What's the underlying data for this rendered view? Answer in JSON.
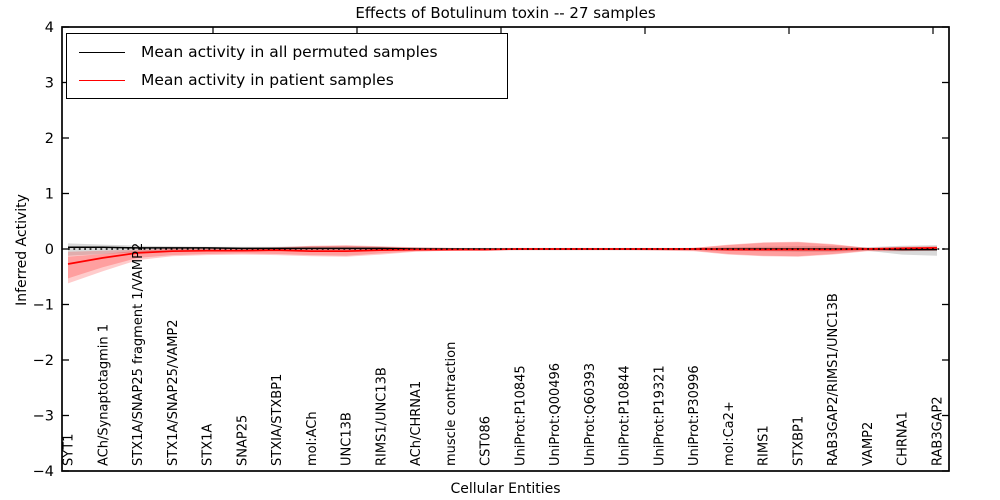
{
  "chart_data": {
    "type": "line",
    "title": "Effects of Botulinum toxin -- 27 samples",
    "xlabel": "Cellular Entities",
    "ylabel": "Inferred Activity",
    "ylim": [
      -4,
      4
    ],
    "yticks": [
      4,
      3,
      2,
      1,
      0,
      -1,
      -2,
      -3,
      -4
    ],
    "grid": false,
    "legend_position": "upper-left",
    "categories": [
      "SYT1",
      "ACh/Synaptotagmin 1",
      "STX1A/SNAP25 fragment 1/VAMP2",
      "STX1A/SNAP25/VAMP2",
      "STX1A",
      "SNAP25",
      "STXIA/STXBP1",
      "mol:ACh",
      "UNC13B",
      "RIMS1/UNC13B",
      "ACh/CHRNA1",
      "muscle contraction",
      "CST086",
      "UniProt:P10845",
      "UniProt:Q00496",
      "UniProt:Q60393",
      "UniProt:P10844",
      "UniProt:P19321",
      "UniProt:P30996",
      "mol:Ca2+",
      "RIMS1",
      "STXBP1",
      "RAB3GAP2/RIMS1/UNC13B",
      "VAMP2",
      "CHRNA1",
      "RAB3GAP2"
    ],
    "series": [
      {
        "name": "Mean activity in all permuted samples",
        "color": "#000000",
        "values": [
          0.03,
          0.03,
          0.02,
          0.02,
          0.02,
          0.01,
          0.01,
          0.01,
          0.01,
          0.01,
          0,
          0,
          0,
          0,
          0,
          0,
          0,
          0,
          0,
          0,
          0,
          0,
          0,
          0,
          -0.01,
          -0.01
        ]
      },
      {
        "name": "Mean activity in patient samples",
        "color": "#ff0000",
        "values": [
          -0.27,
          -0.16,
          -0.07,
          -0.04,
          -0.03,
          -0.03,
          -0.02,
          -0.04,
          -0.04,
          -0.02,
          -0.01,
          -0.01,
          -0.01,
          0,
          0,
          0,
          0,
          0,
          0,
          -0.01,
          -0.01,
          -0.01,
          -0.01,
          0,
          0.01,
          0.02
        ]
      }
    ],
    "baseline": {
      "value": 0,
      "style": "dotted",
      "color": "#000000"
    },
    "bands": [
      {
        "name": "permuted-range",
        "color": "#888888",
        "opacity": 0.32,
        "upper": [
          0.1,
          0.08,
          0.06,
          0.05,
          0.04,
          0.04,
          0.04,
          0.05,
          0.05,
          0.04,
          0.03,
          0.02,
          0.02,
          0.02,
          0.02,
          0.02,
          0.02,
          0.02,
          0.02,
          0.03,
          0.04,
          0.05,
          0.05,
          0.03,
          0.06,
          0.07
        ],
        "lower": [
          -0.12,
          -0.09,
          -0.06,
          -0.04,
          -0.03,
          -0.03,
          -0.03,
          -0.04,
          -0.04,
          -0.03,
          -0.02,
          -0.02,
          -0.02,
          -0.02,
          -0.02,
          -0.02,
          -0.02,
          -0.02,
          -0.02,
          -0.03,
          -0.04,
          -0.05,
          -0.05,
          -0.03,
          -0.1,
          -0.12
        ]
      },
      {
        "name": "patient-range-outer",
        "color": "#ff0000",
        "opacity": 0.2,
        "upper": [
          -0.05,
          -0.03,
          -0.01,
          0.01,
          0.01,
          0.02,
          0.03,
          0.06,
          0.07,
          0.05,
          0.03,
          0.02,
          0.01,
          0.01,
          0.01,
          0.01,
          0.01,
          0.01,
          0.02,
          0.08,
          0.12,
          0.13,
          0.09,
          0.02,
          0.04,
          0.05
        ],
        "lower": [
          -0.62,
          -0.4,
          -0.2,
          -0.13,
          -0.11,
          -0.1,
          -0.11,
          -0.13,
          -0.14,
          -0.1,
          -0.05,
          -0.03,
          -0.03,
          -0.02,
          -0.02,
          -0.02,
          -0.02,
          -0.03,
          -0.04,
          -0.1,
          -0.13,
          -0.14,
          -0.1,
          -0.04,
          -0.04,
          -0.03
        ]
      },
      {
        "name": "patient-range-inner",
        "color": "#ff0000",
        "opacity": 0.22,
        "upper": [
          -0.14,
          -0.09,
          -0.03,
          0.0,
          0.0,
          0.01,
          0.02,
          0.05,
          0.06,
          0.04,
          0.02,
          0.01,
          0.01,
          0.01,
          0.01,
          0.01,
          0.01,
          0.01,
          0.02,
          0.07,
          0.11,
          0.12,
          0.08,
          0.02,
          0.03,
          0.04
        ],
        "lower": [
          -0.53,
          -0.33,
          -0.16,
          -0.11,
          -0.09,
          -0.08,
          -0.09,
          -0.11,
          -0.12,
          -0.08,
          -0.04,
          -0.03,
          -0.02,
          -0.02,
          -0.02,
          -0.02,
          -0.02,
          -0.02,
          -0.03,
          -0.09,
          -0.12,
          -0.13,
          -0.09,
          -0.03,
          -0.03,
          -0.02
        ]
      }
    ]
  }
}
